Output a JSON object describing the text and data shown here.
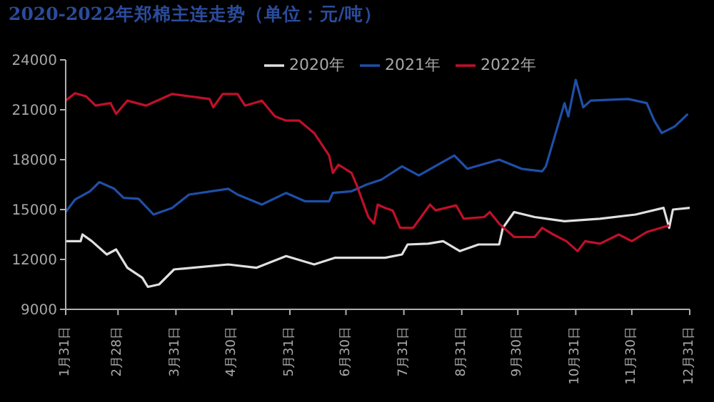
{
  "chart_data": {
    "type": "line",
    "title": "2020-2022年郑棉主连走势（单位：元/吨）",
    "xlim": [
      "--01-31",
      "--12-31"
    ],
    "xticks": [
      {
        "value": "--01-31",
        "label": "1月31日"
      },
      {
        "value": "--02-28",
        "label": "2月28日"
      },
      {
        "value": "--03-31",
        "label": "3月31日"
      },
      {
        "value": "--04-30",
        "label": "4月30日"
      },
      {
        "value": "--05-31",
        "label": "5月31日"
      },
      {
        "value": "--06-30",
        "label": "6月30日"
      },
      {
        "value": "--07-31",
        "label": "7月31日"
      },
      {
        "value": "--08-31",
        "label": "8月31日"
      },
      {
        "value": "--09-30",
        "label": "9月30日"
      },
      {
        "value": "--10-31",
        "label": "10月31日"
      },
      {
        "value": "--11-30",
        "label": "11月30日"
      },
      {
        "value": "--12-31",
        "label": "12月31日"
      }
    ],
    "ylim": [
      9000,
      24000
    ],
    "yticks": [
      9000,
      12000,
      15000,
      18000,
      21000,
      24000
    ],
    "legend": "top",
    "marker": "none",
    "line_style": "solid",
    "series": [
      {
        "name": "2020年",
        "color": "#e0e0e0",
        "x": [
          "--01-31",
          "--02-08",
          "--02-09",
          "--02-14",
          "--02-22",
          "--02-27",
          "--03-05",
          "--03-13",
          "--03-16",
          "--03-22",
          "--03-30",
          "--04-09",
          "--04-28",
          "--05-13",
          "--05-29",
          "--06-13",
          "--06-24",
          "--07-03",
          "--07-21",
          "--07-30",
          "--08-02",
          "--08-13",
          "--08-21",
          "--08-30",
          "--09-09",
          "--09-20",
          "--09-22",
          "--09-28",
          "--10-09",
          "--10-25",
          "--11-13",
          "--12-02",
          "--12-17",
          "--12-20",
          "--12-22",
          "--12-31"
        ],
        "values": [
          13100,
          13100,
          13500,
          13100,
          12300,
          12600,
          11500,
          10900,
          10350,
          10500,
          11400,
          11500,
          11700,
          11500,
          12200,
          11700,
          12100,
          12100,
          12100,
          12300,
          12900,
          12950,
          13100,
          12500,
          12900,
          12900,
          13900,
          14850,
          14550,
          14300,
          14450,
          14700,
          15100,
          13900,
          15000,
          15100
        ]
      },
      {
        "name": "2021年",
        "color": "#1f4fa8",
        "x": [
          "--01-31",
          "--02-05",
          "--02-13",
          "--02-18",
          "--02-26",
          "--03-03",
          "--03-11",
          "--03-19",
          "--03-29",
          "--04-07",
          "--04-28",
          "--05-03",
          "--05-16",
          "--05-29",
          "--06-08",
          "--06-21",
          "--06-23",
          "--07-03",
          "--07-11",
          "--07-19",
          "--07-30",
          "--08-08",
          "--08-27",
          "--09-03",
          "--09-20",
          "--10-02",
          "--10-13",
          "--10-15",
          "--10-25",
          "--10-27",
          "--10-31",
          "--11-04",
          "--11-08",
          "--11-28",
          "--12-08",
          "--12-12",
          "--12-16",
          "--12-23",
          "--12-30"
        ],
        "values": [
          14850,
          15600,
          16100,
          16650,
          16250,
          15700,
          15650,
          14700,
          15100,
          15900,
          16250,
          15900,
          15300,
          16000,
          15500,
          15500,
          16000,
          16100,
          16500,
          16800,
          17600,
          17050,
          18250,
          17450,
          18000,
          17450,
          17300,
          17600,
          21400,
          20600,
          22800,
          21150,
          21550,
          21650,
          21400,
          20350,
          19600,
          20000,
          20750
        ]
      },
      {
        "name": "2022年",
        "color": "#c0102a",
        "x": [
          "--01-31",
          "--02-05",
          "--02-11",
          "--02-16",
          "--02-24",
          "--02-27",
          "--03-05",
          "--03-15",
          "--03-29",
          "--04-18",
          "--04-20",
          "--04-25",
          "--05-03",
          "--05-07",
          "--05-16",
          "--05-23",
          "--05-29",
          "--06-05",
          "--06-13",
          "--06-21",
          "--06-23",
          "--06-26",
          "--07-03",
          "--07-06",
          "--07-12",
          "--07-15",
          "--07-17",
          "--07-21",
          "--07-25",
          "--07-29",
          "--08-05",
          "--08-14",
          "--08-17",
          "--08-28",
          "--09-01",
          "--09-12",
          "--09-15",
          "--09-20",
          "--09-28",
          "--10-09",
          "--10-13",
          "--10-19",
          "--10-26",
          "--11-01",
          "--11-05",
          "--11-13",
          "--11-23",
          "--11-30",
          "--12-08",
          "--12-20"
        ],
        "values": [
          21550,
          22000,
          21800,
          21250,
          21400,
          20750,
          21550,
          21250,
          21950,
          21650,
          21150,
          21950,
          21950,
          21250,
          21550,
          20600,
          20350,
          20350,
          19600,
          18250,
          17200,
          17700,
          17200,
          16400,
          14550,
          14150,
          15300,
          15100,
          14950,
          13900,
          13900,
          15300,
          14950,
          15250,
          14450,
          14550,
          14850,
          14150,
          13350,
          13350,
          13900,
          13500,
          13100,
          12500,
          13100,
          12950,
          13500,
          13100,
          13650,
          14050
        ]
      }
    ]
  }
}
